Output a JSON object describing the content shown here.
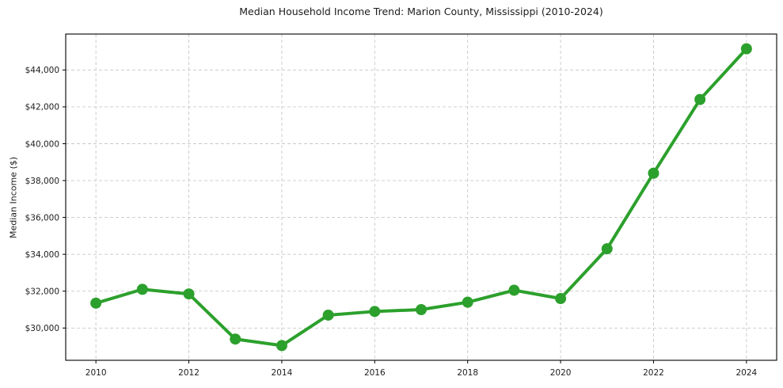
{
  "figure": {
    "background": "#ffffff"
  },
  "chart_data": {
    "type": "line",
    "title": "Median Household Income Trend: Marion County, Mississippi (2010-2024)",
    "xlabel": "",
    "ylabel": "Median Income ($)",
    "x": [
      2010,
      2011,
      2012,
      2013,
      2014,
      2015,
      2016,
      2017,
      2018,
      2019,
      2020,
      2021,
      2022,
      2023,
      2024
    ],
    "values": [
      31350,
      32100,
      31850,
      29400,
      29050,
      30700,
      30900,
      31000,
      31400,
      32050,
      31600,
      34300,
      38400,
      42400,
      45150
    ],
    "xlim": [
      2009.35,
      2024.65
    ],
    "ylim": [
      28250,
      45950
    ],
    "x_ticks": [
      2010,
      2012,
      2014,
      2016,
      2018,
      2020,
      2022,
      2024
    ],
    "x_tick_labels": [
      "2010",
      "2012",
      "2014",
      "2016",
      "2018",
      "2020",
      "2022",
      "2024"
    ],
    "y_ticks": [
      30000,
      32000,
      34000,
      36000,
      38000,
      40000,
      42000,
      44000
    ],
    "y_tick_labels": [
      "$30,000",
      "$32,000",
      "$34,000",
      "$36,000",
      "$38,000",
      "$40,000",
      "$42,000",
      "$44,000"
    ],
    "grid": true,
    "grid_style": "dashed",
    "legend_position": "none",
    "line_color": "#2ca02c",
    "marker": "circle",
    "grid_color": "#c8c8c8",
    "border_color": "#000000",
    "text_color": "#1c1c1c"
  }
}
